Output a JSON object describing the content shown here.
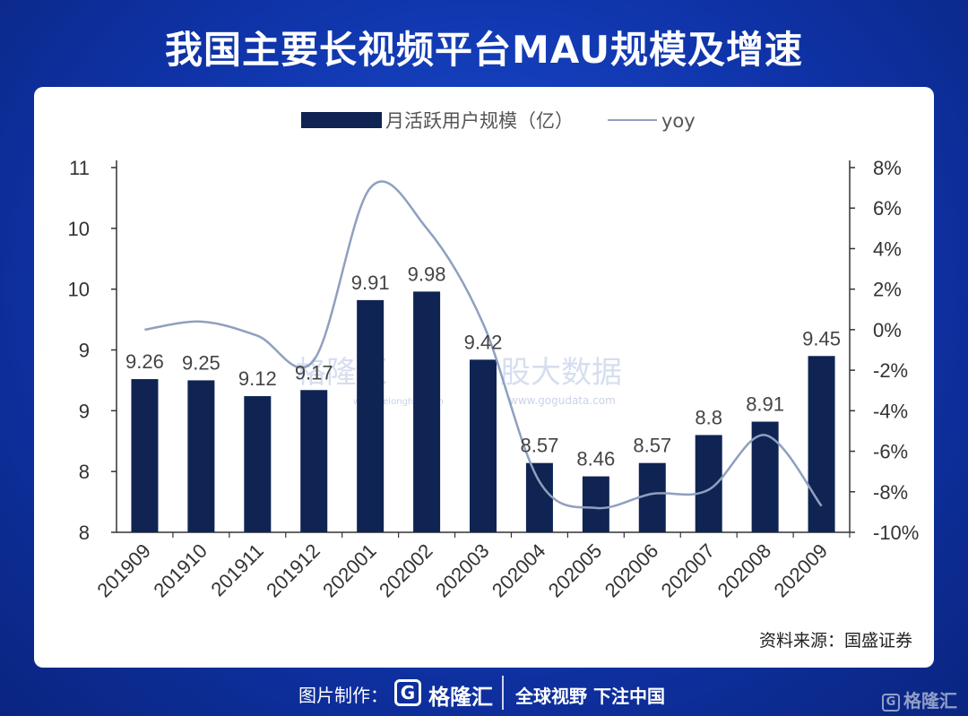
{
  "header": {
    "title": "我国主要长视频平台MAU规模及增速"
  },
  "chart_data": {
    "type": "bar",
    "categories": [
      "201909",
      "201910",
      "201911",
      "201912",
      "202001",
      "202002",
      "202003",
      "202004",
      "202005",
      "202006",
      "202007",
      "202008",
      "202009"
    ],
    "series": [
      {
        "name": "月活跃用户规模（亿）",
        "type": "bar",
        "axis": "left",
        "values": [
          9.26,
          9.25,
          9.12,
          9.17,
          9.91,
          9.98,
          9.42,
          8.57,
          8.46,
          8.57,
          8.8,
          8.91,
          9.45
        ]
      },
      {
        "name": "yoy",
        "type": "line",
        "axis": "right",
        "values": [
          0.0,
          0.4,
          -0.3,
          -1.5,
          7.0,
          5.0,
          0.3,
          -7.5,
          -8.8,
          -8.1,
          -7.9,
          -5.2,
          -8.7
        ]
      }
    ],
    "data_labels": [
      "9.26",
      "9.25",
      "9.12",
      "9.17",
      "9.91",
      "9.98",
      "9.42",
      "8.57",
      "8.46",
      "8.57",
      "8.8",
      "8.91",
      "9.45"
    ],
    "y_left": {
      "range": [
        8.0,
        11.0
      ],
      "tick_values": [
        8.0,
        8.5,
        9.0,
        9.5,
        10.0,
        10.5,
        11.0
      ],
      "tick_labels": [
        "8",
        "8",
        "9",
        "9",
        "10",
        "10",
        "11"
      ]
    },
    "y_right": {
      "range": [
        -10,
        8
      ],
      "tick_values": [
        -10,
        -8,
        -6,
        -4,
        -2,
        0,
        2,
        4,
        6,
        8
      ],
      "tick_labels": [
        "-10%",
        "-8%",
        "-6%",
        "-4%",
        "-2%",
        "0%",
        "2%",
        "4%",
        "6%",
        "8%"
      ]
    },
    "legend": {
      "position": "top",
      "bar_label": "月活跃用户规模（亿）",
      "line_label": "yoy"
    },
    "colors": {
      "bar": "#0f2453",
      "line": "#8fa0bf"
    }
  },
  "watermark": {
    "left": "格隆汇",
    "left_sub": "www.gelonghui.com",
    "right": "股大数据",
    "right_sub": "www.gogudata.com"
  },
  "source": "资料来源：国盛证券",
  "footer": {
    "credit": "图片制作：",
    "logo_letter": "G",
    "brand": "格隆汇",
    "slogan": "全球视野 下注中国"
  },
  "corner": {
    "logo_letter": "G",
    "brand": "格隆汇"
  }
}
